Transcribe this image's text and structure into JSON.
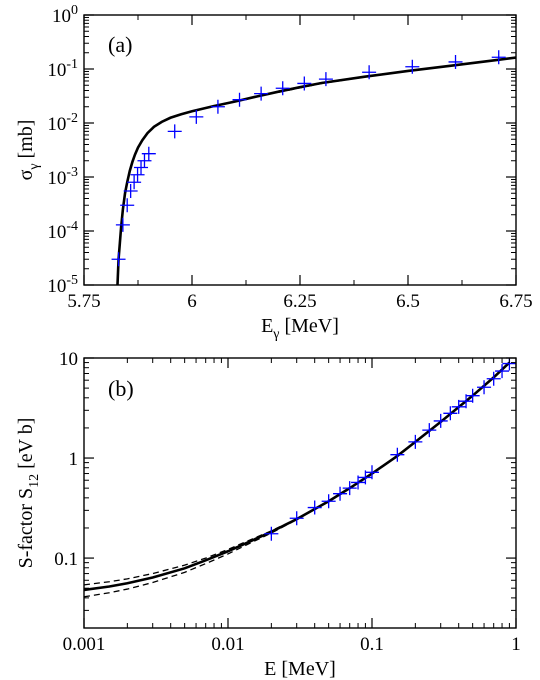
{
  "chart_data": [
    {
      "type": "line",
      "panel_label": "(a)",
      "xlabel": {
        "main": "E",
        "sub": "γ",
        "suffix": " [MeV]"
      },
      "ylabel": {
        "main": "σ",
        "sub": "γ",
        "suffix": " [mb]"
      },
      "x_scale": "linear",
      "y_scale": "log",
      "xlim": [
        5.75,
        6.75
      ],
      "ylim": [
        1e-05,
        1
      ],
      "x_ticks": [
        {
          "v": 5.75,
          "label": "5.75"
        },
        {
          "v": 6.0,
          "label": "6"
        },
        {
          "v": 6.25,
          "label": "6.25"
        },
        {
          "v": 6.5,
          "label": "6.5"
        },
        {
          "v": 6.75,
          "label": "6.75"
        }
      ],
      "y_ticks": [
        {
          "v": 1e-05,
          "base": "10",
          "exp": "-5"
        },
        {
          "v": 0.0001,
          "base": "10",
          "exp": "-4"
        },
        {
          "v": 0.001,
          "base": "10",
          "exp": "-3"
        },
        {
          "v": 0.01,
          "base": "10",
          "exp": "-2"
        },
        {
          "v": 0.1,
          "base": "10",
          "exp": "-1"
        },
        {
          "v": 1,
          "base": "10",
          "exp": "0"
        }
      ],
      "grid": false,
      "series": [
        {
          "style": "solid",
          "color": "#000000",
          "x": [
            5.8275,
            5.83,
            5.833,
            5.836,
            5.84,
            5.845,
            5.85,
            5.856,
            5.862,
            5.868,
            5.875,
            5.885,
            5.897,
            5.912,
            5.93,
            5.95,
            5.975,
            6.0,
            6.05,
            6.1,
            6.15,
            6.2,
            6.25,
            6.3,
            6.4,
            6.5,
            6.6,
            6.7,
            6.75
          ],
          "y": [
            1e-05,
            3e-05,
            6e-05,
            0.00012,
            0.00025,
            0.0005,
            0.0008,
            0.0013,
            0.0019,
            0.0026,
            0.0035,
            0.0048,
            0.0065,
            0.0085,
            0.0105,
            0.0125,
            0.0145,
            0.0165,
            0.0205,
            0.025,
            0.031,
            0.038,
            0.046,
            0.055,
            0.072,
            0.092,
            0.115,
            0.145,
            0.163
          ]
        },
        {
          "style": "dashed",
          "color": "#000000",
          "x": [
            6.2,
            6.3,
            6.4,
            6.5,
            6.6,
            6.7,
            6.75
          ],
          "y": [
            0.037,
            0.054,
            0.071,
            0.091,
            0.114,
            0.144,
            0.162
          ]
        },
        {
          "style": "dashed",
          "color": "#000000",
          "x": [
            6.2,
            6.3,
            6.4,
            6.5,
            6.6,
            6.7,
            6.75
          ],
          "y": [
            0.039,
            0.056,
            0.073,
            0.093,
            0.116,
            0.146,
            0.164
          ]
        },
        {
          "style": "plus",
          "color": "#0000ff",
          "x": [
            5.83,
            5.84,
            5.85,
            5.858,
            5.866,
            5.874,
            5.882,
            5.89,
            5.9,
            5.96,
            6.01,
            6.06,
            6.11,
            6.16,
            6.21,
            6.26,
            6.31,
            6.41,
            6.51,
            6.61,
            6.71
          ],
          "y": [
            3e-05,
            0.00013,
            0.0003,
            0.00055,
            0.0008,
            0.0011,
            0.0015,
            0.002,
            0.0027,
            0.007,
            0.013,
            0.02,
            0.027,
            0.035,
            0.044,
            0.054,
            0.065,
            0.087,
            0.11,
            0.135,
            0.165
          ]
        }
      ]
    },
    {
      "type": "line",
      "panel_label": "(b)",
      "xlabel": {
        "main": "E",
        "suffix": " [MeV]"
      },
      "ylabel": {
        "main": "S-factor S",
        "sub": "12",
        "suffix": " [eV b]"
      },
      "x_scale": "log",
      "y_scale": "log",
      "xlim": [
        0.001,
        1
      ],
      "ylim": [
        0.02,
        10
      ],
      "x_ticks": [
        {
          "v": 0.001,
          "label": "0.001"
        },
        {
          "v": 0.01,
          "label": "0.01"
        },
        {
          "v": 0.1,
          "label": "0.1"
        },
        {
          "v": 1,
          "label": "1"
        }
      ],
      "y_ticks": [
        {
          "v": 0.1,
          "label": "0.1"
        },
        {
          "v": 1,
          "label": "1"
        },
        {
          "v": 10,
          "label": "10"
        }
      ],
      "grid": false,
      "series": [
        {
          "style": "solid",
          "color": "#000000",
          "x": [
            0.001,
            0.0015,
            0.002,
            0.003,
            0.005,
            0.007,
            0.01,
            0.015,
            0.02,
            0.03,
            0.05,
            0.07,
            0.1,
            0.15,
            0.2,
            0.3,
            0.5,
            0.7,
            0.9
          ],
          "y": [
            0.048,
            0.052,
            0.056,
            0.064,
            0.079,
            0.095,
            0.117,
            0.152,
            0.183,
            0.245,
            0.37,
            0.5,
            0.7,
            1.05,
            1.45,
            2.3,
            4.2,
            6.4,
            9.0
          ]
        },
        {
          "style": "dashed",
          "color": "#000000",
          "x": [
            0.001,
            0.0015,
            0.002,
            0.003,
            0.005,
            0.007,
            0.01,
            0.015,
            0.02,
            0.03,
            0.05
          ],
          "y": [
            0.054,
            0.058,
            0.062,
            0.07,
            0.085,
            0.1,
            0.122,
            0.157,
            0.187,
            0.248,
            0.372
          ]
        },
        {
          "style": "dashed",
          "color": "#000000",
          "x": [
            0.001,
            0.0015,
            0.002,
            0.003,
            0.005,
            0.007,
            0.01,
            0.015,
            0.02,
            0.03,
            0.05
          ],
          "y": [
            0.041,
            0.045,
            0.049,
            0.057,
            0.072,
            0.088,
            0.11,
            0.146,
            0.178,
            0.242,
            0.368
          ]
        },
        {
          "style": "plus",
          "color": "#0000ff",
          "x": [
            0.02,
            0.03,
            0.04,
            0.05,
            0.06,
            0.07,
            0.08,
            0.09,
            0.1,
            0.15,
            0.2,
            0.25,
            0.3,
            0.35,
            0.4,
            0.45,
            0.5,
            0.6,
            0.7,
            0.8,
            0.9
          ],
          "y": [
            0.175,
            0.25,
            0.32,
            0.37,
            0.44,
            0.5,
            0.57,
            0.64,
            0.72,
            1.08,
            1.45,
            1.9,
            2.35,
            2.8,
            3.25,
            3.7,
            4.2,
            5.1,
            6.2,
            7.4,
            8.8
          ]
        }
      ]
    }
  ]
}
